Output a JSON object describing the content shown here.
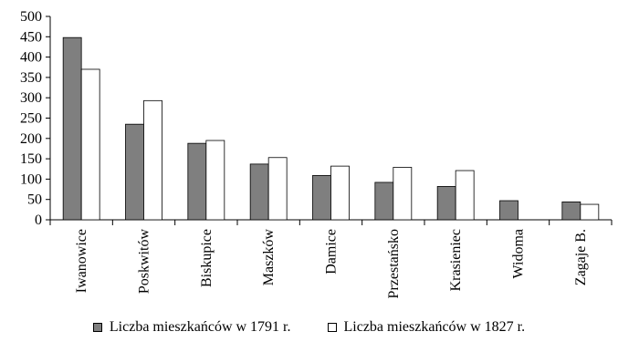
{
  "chart_data": {
    "type": "bar",
    "title": "",
    "xlabel": "",
    "ylabel": "",
    "ylim": [
      0,
      500
    ],
    "yticks": [
      0,
      50,
      100,
      150,
      200,
      250,
      300,
      350,
      400,
      450,
      500
    ],
    "categories": [
      "Iwanowice",
      "Poskwitów",
      "Biskupice",
      "Maszków",
      "Damice",
      "Przestańsko",
      "Krasieniec",
      "Widoma",
      "Zagaje B."
    ],
    "series": [
      {
        "name": "Liczba mieszkańców w 1791 r.",
        "color": "#7f7f7f",
        "values": [
          448,
          235,
          188,
          137,
          109,
          92,
          82,
          47,
          44
        ]
      },
      {
        "name": "Liczba mieszkańców w 1827 r.",
        "color": "#ffffff",
        "values": [
          370,
          293,
          195,
          153,
          132,
          129,
          121,
          null,
          38
        ]
      }
    ],
    "grid": false,
    "legend_position": "bottom"
  }
}
